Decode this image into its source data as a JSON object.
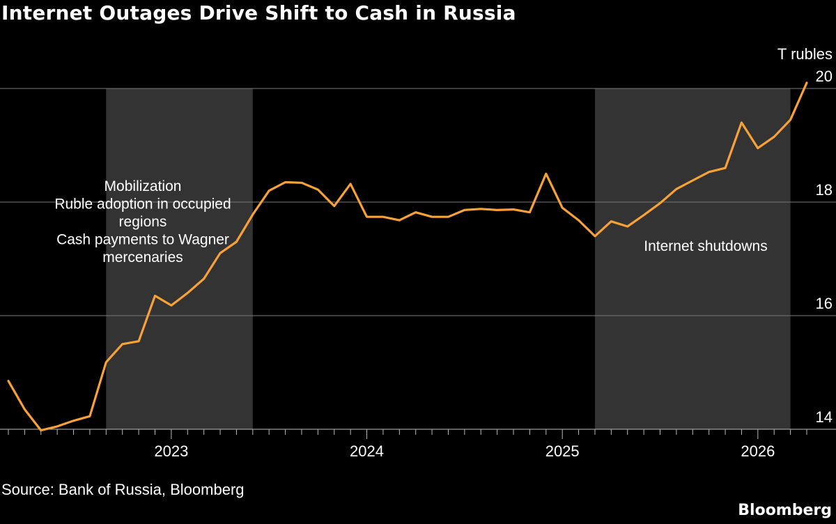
{
  "title": "Internet Outages Drive Shift to Cash in Russia",
  "source": "Source: Bank of Russia, Bloomberg",
  "brand": "Bloomberg",
  "colors": {
    "background": "#000000",
    "line": "#f7a136",
    "shade": "#333333",
    "grid": "#7a7a7a"
  },
  "chart_data": {
    "type": "line",
    "title": "Internet Outages Drive Shift to Cash in Russia",
    "unit": "T rubles",
    "y_axis_position": "right",
    "ylim": [
      14,
      20
    ],
    "yticks": [
      "14",
      "16",
      "18",
      "20"
    ],
    "grid": true,
    "xlim": [
      "2022-03",
      "2026-04"
    ],
    "xticks": [
      "2023",
      "2024",
      "2025",
      "2026"
    ],
    "shaded_periods": [
      {
        "start": "2022-09",
        "end": "2023-06",
        "labels": [
          "Mobilization",
          "Ruble adoption in occupied",
          "regions",
          "Cash payments to Wagner",
          "mercenaries"
        ]
      },
      {
        "start": "2025-03",
        "end": "2026-03",
        "labels": [
          "Internet shutdowns"
        ]
      }
    ],
    "series": [
      {
        "x": [
          "2022-03",
          "2022-04",
          "2022-05",
          "2022-06",
          "2022-07",
          "2022-08",
          "2022-09",
          "2022-10",
          "2022-11",
          "2022-12",
          "2023-01",
          "2023-02",
          "2023-03",
          "2023-04",
          "2023-05",
          "2023-06",
          "2023-07",
          "2023-08",
          "2023-09",
          "2023-10",
          "2023-11",
          "2023-12",
          "2024-01",
          "2024-02",
          "2024-03",
          "2024-04",
          "2024-05",
          "2024-06",
          "2024-07",
          "2024-08",
          "2024-09",
          "2024-10",
          "2024-11",
          "2024-12",
          "2025-01",
          "2025-02",
          "2025-03",
          "2025-04",
          "2025-05",
          "2025-06",
          "2025-07",
          "2025-08",
          "2025-09",
          "2025-10",
          "2025-11",
          "2025-12",
          "2026-01",
          "2026-02",
          "2026-03",
          "2026-04"
        ],
        "values": [
          14.85,
          14.35,
          13.98,
          14.05,
          14.15,
          14.23,
          15.18,
          15.5,
          15.55,
          16.35,
          16.18,
          16.4,
          16.65,
          17.1,
          17.3,
          17.78,
          18.2,
          18.35,
          18.34,
          18.22,
          17.93,
          18.32,
          17.74,
          17.74,
          17.68,
          17.82,
          17.74,
          17.74,
          17.86,
          17.88,
          17.86,
          17.87,
          17.82,
          18.5,
          17.9,
          17.68,
          17.4,
          17.66,
          17.57,
          17.77,
          17.98,
          18.23,
          18.38,
          18.53,
          18.6,
          19.4,
          18.95,
          19.15,
          19.45,
          20.1
        ]
      }
    ]
  }
}
